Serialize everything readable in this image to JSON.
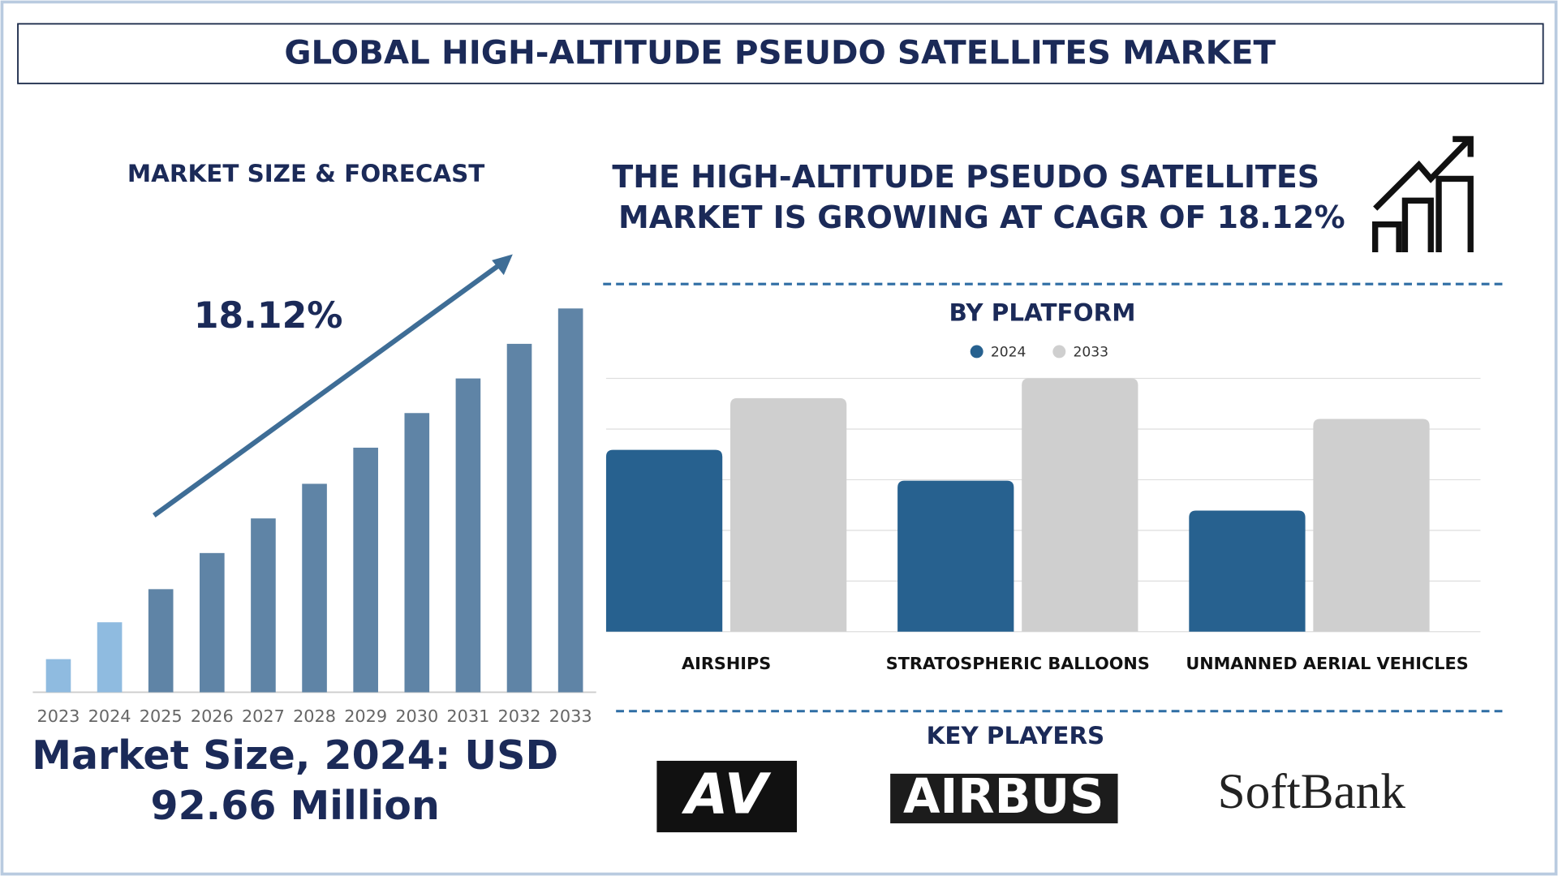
{
  "title": "GLOBAL HIGH-ALTITUDE PSEUDO SATELLITES MARKET",
  "headline": [
    "THE HIGH-ALTITUDE PSEUDO SATELLITES",
    "MARKET IS GROWING AT CAGR OF 18.12%"
  ],
  "market_size": [
    "Market Size, 2024: USD",
    "92.66 Million"
  ],
  "key_players": {
    "title": "KEY PLAYERS",
    "logos": [
      "AV",
      "AIRBUS",
      "SoftBank"
    ]
  },
  "chart_data": [
    {
      "type": "bar",
      "title": "MARKET SIZE & FORECAST",
      "annotation": "18.12%",
      "categories": [
        "2023",
        "2024",
        "2025",
        "2026",
        "2027",
        "2028",
        "2029",
        "2030",
        "2031",
        "2032",
        "2033"
      ],
      "values": [
        44,
        93,
        137,
        185,
        231,
        277,
        325,
        371,
        417,
        463,
        510
      ],
      "colors": [
        "#8fbbe0",
        "#8fbbe0",
        "#5f84a6",
        "#5f84a6",
        "#5f84a6",
        "#5f84a6",
        "#5f84a6",
        "#5f84a6",
        "#5f84a6",
        "#5f84a6",
        "#5f84a6"
      ],
      "ylim": [
        0,
        520
      ]
    },
    {
      "type": "bar",
      "title": "BY PLATFORM",
      "categories": [
        "AIRSHIPS",
        "STRATOSPHERIC BALLOONS",
        "UNMANNED AERIAL VEHICLES"
      ],
      "series": [
        {
          "name": "2024",
          "color": "#27618f",
          "values": [
            3.59,
            2.98,
            2.39
          ]
        },
        {
          "name": "2033",
          "color": "#cfcfcf",
          "values": [
            4.61,
            5.0,
            4.2
          ]
        }
      ],
      "ylim": [
        0,
        5
      ],
      "yticks": [
        0,
        1,
        2,
        3,
        4,
        5
      ],
      "grid": true
    }
  ]
}
